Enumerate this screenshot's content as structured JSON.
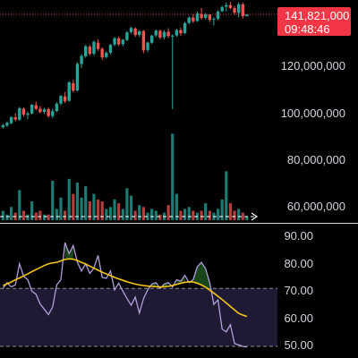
{
  "price_badge": {
    "price": "141,821,000",
    "countdown": "09:48:46"
  },
  "colors": {
    "background": "#000000",
    "up": "#26a69a",
    "down": "#ef5350",
    "badge": "#f23645",
    "axis_text": "#d1d4dc",
    "rsi_line": "#b39ddb",
    "rsi_ma": "#f5c518",
    "rsi_band": "#1e1a33",
    "divider": "#d9d9d9"
  },
  "chart_data": [
    {
      "type": "candlestick",
      "title": "",
      "y_axis_labels": [
        "120,000,000",
        "100,000,000",
        "80,000,000",
        "60,000,000"
      ],
      "y_ticks": [
        120000000,
        100000000,
        80000000,
        60000000
      ],
      "current_price": 141821000,
      "price_line_style": "dotted",
      "ylim": [
        52000000,
        148000000
      ],
      "candles": [
        [
          93.0,
          94.4,
          92.4,
          93.9
        ],
        [
          93.7,
          95.5,
          93.0,
          94.9
        ],
        [
          94.7,
          97.6,
          94.3,
          97.4
        ],
        [
          97.3,
          99.0,
          95.5,
          96.3
        ],
        [
          96.2,
          101.8,
          95.8,
          101.2
        ],
        [
          101.0,
          101.5,
          97.5,
          98.4
        ],
        [
          98.3,
          99.8,
          96.5,
          98.9
        ],
        [
          98.9,
          103.0,
          98.5,
          102.7
        ],
        [
          102.5,
          104.1,
          100.3,
          100.9
        ],
        [
          101.0,
          102.2,
          99.0,
          99.5
        ],
        [
          99.6,
          101.4,
          98.8,
          100.7
        ],
        [
          100.8,
          101.5,
          97.0,
          97.8
        ],
        [
          97.8,
          101.0,
          96.8,
          99.9
        ],
        [
          100.0,
          103.8,
          99.5,
          103.2
        ],
        [
          103.2,
          107.0,
          102.5,
          106.5
        ],
        [
          106.3,
          108.2,
          103.5,
          104.2
        ],
        [
          104.4,
          113.0,
          104.0,
          112.4
        ],
        [
          112.0,
          113.5,
          108.0,
          108.8
        ],
        [
          108.9,
          121.0,
          108.5,
          120.4
        ],
        [
          120.3,
          124.6,
          118.5,
          123.8
        ],
        [
          123.7,
          128.6,
          123.0,
          128.0
        ],
        [
          127.8,
          128.6,
          124.0,
          124.7
        ],
        [
          124.8,
          130.5,
          124.0,
          129.9
        ],
        [
          129.6,
          131.0,
          126.0,
          126.8
        ],
        [
          126.9,
          127.5,
          122.0,
          123.2
        ],
        [
          123.3,
          125.8,
          122.8,
          125.2
        ],
        [
          125.2,
          129.0,
          124.5,
          128.6
        ],
        [
          128.7,
          132.0,
          128.0,
          131.5
        ],
        [
          131.4,
          132.2,
          128.0,
          128.8
        ],
        [
          128.9,
          131.2,
          128.0,
          130.8
        ],
        [
          130.7,
          134.6,
          130.2,
          134.0
        ],
        [
          134.1,
          136.5,
          133.5,
          135.9
        ],
        [
          135.7,
          136.2,
          132.0,
          132.8
        ],
        [
          132.9,
          135.0,
          132.0,
          134.5
        ],
        [
          134.6,
          135.0,
          125.0,
          126.2
        ],
        [
          126.4,
          130.0,
          125.5,
          129.6
        ],
        [
          129.5,
          133.0,
          129.0,
          132.6
        ],
        [
          132.7,
          135.2,
          132.0,
          134.8
        ],
        [
          134.7,
          135.2,
          131.0,
          131.8
        ],
        [
          131.9,
          135.0,
          131.0,
          134.2
        ],
        [
          134.3,
          135.8,
          131.5,
          132.4
        ],
        [
          132.5,
          133.2,
          100.8,
          132.6
        ],
        [
          132.7,
          135.6,
          132.0,
          135.0
        ],
        [
          135.0,
          136.0,
          132.5,
          133.6
        ],
        [
          133.7,
          138.5,
          133.2,
          138.0
        ],
        [
          138.1,
          141.0,
          137.5,
          140.4
        ],
        [
          140.4,
          142.0,
          138.0,
          138.8
        ],
        [
          138.9,
          143.0,
          138.5,
          142.2
        ],
        [
          142.0,
          144.5,
          139.5,
          140.2
        ],
        [
          140.3,
          142.5,
          139.5,
          141.8
        ],
        [
          141.8,
          142.0,
          138.5,
          139.4
        ],
        [
          139.5,
          140.5,
          137.0,
          139.8
        ],
        [
          139.9,
          143.5,
          139.2,
          143.0
        ],
        [
          143.1,
          145.5,
          142.8,
          145.0
        ],
        [
          145.1,
          147.0,
          143.0,
          145.8
        ],
        [
          145.8,
          147.2,
          144.0,
          144.5
        ],
        [
          144.5,
          145.5,
          141.5,
          142.5
        ],
        [
          142.4,
          147.0,
          140.5,
          146.2
        ],
        [
          146.1,
          147.0,
          140.0,
          141.0
        ],
        [
          141.0,
          142.0,
          141.0,
          141.8
        ]
      ],
      "volume_candles": [
        [
          0,
          5.0
        ],
        [
          1,
          3.0
        ],
        [
          2,
          7.0
        ],
        [
          3,
          4.0
        ],
        [
          4,
          16.0
        ],
        [
          5,
          5.0
        ],
        [
          6,
          3.0
        ],
        [
          7,
          10.0
        ],
        [
          8,
          4.0
        ],
        [
          9,
          5.0
        ],
        [
          10,
          3.0
        ],
        [
          11,
          3.0
        ],
        [
          12,
          21.0
        ],
        [
          13,
          6.0
        ],
        [
          14,
          12.0
        ],
        [
          15,
          5.0
        ],
        [
          16,
          22.0
        ],
        [
          17,
          14.0
        ],
        [
          18,
          20.0
        ],
        [
          19,
          12.0
        ],
        [
          20,
          18.0
        ],
        [
          21,
          10.0
        ],
        [
          22,
          14.0
        ],
        [
          23,
          11.0
        ],
        [
          24,
          10.0
        ],
        [
          25,
          6.0
        ],
        [
          26,
          7.0
        ],
        [
          27,
          11.0
        ],
        [
          28,
          9.0
        ],
        [
          29,
          6.0
        ],
        [
          30,
          17.0
        ],
        [
          31,
          13.0
        ],
        [
          32,
          5.0
        ],
        [
          33,
          8.0
        ],
        [
          34,
          7.0
        ],
        [
          35,
          4.0
        ],
        [
          36,
          6.0
        ],
        [
          37,
          5.0
        ],
        [
          38,
          3.0
        ],
        [
          39,
          4.0
        ],
        [
          40,
          8.0
        ],
        [
          41,
          46.0
        ],
        [
          42,
          14.0
        ],
        [
          43,
          5.0
        ],
        [
          44,
          6.0
        ],
        [
          45,
          7.0
        ],
        [
          46,
          5.0
        ],
        [
          47,
          4.0
        ],
        [
          48,
          5.0
        ],
        [
          49,
          9.0
        ],
        [
          50,
          5.0
        ],
        [
          51,
          4.0
        ],
        [
          52,
          6.0
        ],
        [
          53,
          11.0
        ],
        [
          54,
          26.0
        ],
        [
          55,
          9.0
        ],
        [
          56,
          5.0
        ],
        [
          57,
          6.0
        ],
        [
          58,
          4.0
        ],
        [
          59,
          2.0
        ]
      ]
    },
    {
      "type": "line",
      "title": "",
      "y_axis_labels": [
        "90.00",
        "80.00",
        "70.00",
        "60.00",
        "50.00"
      ],
      "y_ticks": [
        90,
        80,
        70,
        60,
        50
      ],
      "ylim": [
        46,
        92
      ],
      "band": [
        50,
        70
      ],
      "series": [
        {
          "values": [
            70.0,
            72.0,
            70.5,
            71.2,
            78.5,
            74.2,
            73.0,
            69.0,
            68.0,
            64.6,
            62.8,
            61.0,
            63.5,
            71.2,
            73.0,
            85.8,
            82.0,
            84.8,
            79.0,
            76.0,
            78.5,
            75.2,
            77.0,
            81.4,
            73.8,
            73.5,
            76.0,
            69.5,
            71.8,
            69.0,
            66.5,
            64.2,
            67.0,
            61.5,
            66.5,
            69.5,
            71.5,
            72.0,
            70.0,
            71.5,
            72.0,
            70.5,
            73.0,
            72.5,
            74.5,
            72.0,
            73.0,
            77.5,
            79.0,
            76.8,
            72.0,
            64.5,
            66.0,
            56.0,
            55.0,
            57.5,
            51.0,
            50.5,
            50.0,
            49.8
          ]
        },
        {
          "values": [
            71.0,
            71.6,
            72.2,
            73.0,
            73.6,
            74.3,
            75.0,
            75.8,
            76.5,
            77.2,
            77.9,
            78.5,
            78.8,
            79.0,
            79.5,
            80.0,
            80.2,
            80.1,
            79.6,
            79.0,
            78.4,
            77.7,
            77.0,
            76.3,
            75.6,
            75.0,
            74.4,
            73.8,
            73.3,
            72.8,
            72.3,
            71.9,
            71.5,
            71.2,
            71.0,
            70.8,
            70.7,
            70.6,
            70.5,
            70.6,
            70.7,
            71.0,
            71.4,
            71.8,
            72.1,
            72.3,
            72.2,
            71.8,
            71.2,
            70.4,
            69.4,
            68.4,
            67.3,
            66.2,
            65.0,
            63.8,
            62.6,
            61.4,
            60.8,
            60.3
          ]
        }
      ]
    }
  ]
}
